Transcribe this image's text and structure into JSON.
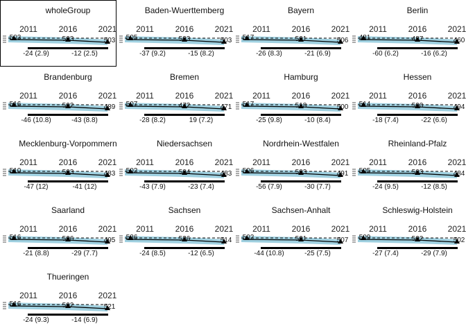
{
  "chart_data": {
    "type": "line",
    "x_ticks": [
      "2011",
      "2016",
      "2021"
    ],
    "colors": {
      "band": "#9fd0e0",
      "main_line": "#000000",
      "ref_line": "#000000",
      "grey_text": "#aaaaaa"
    },
    "highlighted_panel": "wholeGroup",
    "panels": [
      {
        "name": "wholeGroup",
        "point_labels": [
          "503",
          "503",
          "503"
        ],
        "diff_labels": [
          "-24 (2.9)",
          "-12 (2.5)"
        ]
      },
      {
        "name": "Baden-Wuerttemberg",
        "point_labels": [
          "505",
          "503",
          "503"
        ],
        "diff_labels": [
          "-37 (9.2)",
          "-15 (8.2)"
        ]
      },
      {
        "name": "Bayern",
        "point_labels": [
          "517",
          "501",
          "506"
        ],
        "diff_labels": [
          "-26 (8.3)",
          "-21 (6.9)"
        ]
      },
      {
        "name": "Berlin",
        "point_labels": [
          "481",
          "487",
          "460"
        ],
        "diff_labels": [
          "-60 (6.2)",
          "-16 (6.2)"
        ]
      },
      {
        "name": "Brandenburg",
        "point_labels": [
          "516",
          "502",
          "489"
        ],
        "diff_labels": [
          "-46 (10.8)",
          "-43 (8.8)"
        ]
      },
      {
        "name": "Bremen",
        "point_labels": [
          "507",
          "472",
          "471"
        ],
        "diff_labels": [
          "-28 (8.2)",
          "19 (7.2)"
        ]
      },
      {
        "name": "Hamburg",
        "point_labels": [
          "517",
          "518",
          "500"
        ],
        "diff_labels": [
          "-25 (9.8)",
          "-10 (8.4)"
        ]
      },
      {
        "name": "Hessen",
        "point_labels": [
          "514",
          "500",
          "494"
        ],
        "diff_labels": [
          "-18 (7.4)",
          "-22 (6.6)"
        ]
      },
      {
        "name": "Mecklenburg-Vorpommern",
        "point_labels": [
          "510",
          "503",
          "483"
        ],
        "diff_labels": [
          "-47 (12)",
          "-41 (12)"
        ]
      },
      {
        "name": "Niedersachsen",
        "point_labels": [
          "502",
          "504",
          "483"
        ],
        "diff_labels": [
          "-43 (7.9)",
          "-23 (7.4)"
        ]
      },
      {
        "name": "Nordrhein-Westfalen",
        "point_labels": [
          "506",
          "503",
          "491"
        ],
        "diff_labels": [
          "-56 (7.9)",
          "-30 (7.7)"
        ]
      },
      {
        "name": "Rheinland-Pfalz",
        "point_labels": [
          "505",
          "503",
          "484"
        ],
        "diff_labels": [
          "-24 (9.5)",
          "-12 (8.5)"
        ]
      },
      {
        "name": "Saarland",
        "point_labels": [
          "516",
          "506",
          "495"
        ],
        "diff_labels": [
          "-21 (8.8)",
          "-29 (7.7)"
        ]
      },
      {
        "name": "Sachsen",
        "point_labels": [
          "536",
          "536",
          "514"
        ],
        "diff_labels": [
          "-24 (8.5)",
          "-12 (6.5)"
        ]
      },
      {
        "name": "Sachsen-Anhalt",
        "point_labels": [
          "502",
          "501",
          "507"
        ],
        "diff_labels": [
          "-44 (10.8)",
          "-25 (7.5)"
        ]
      },
      {
        "name": "Schleswig-Holstein",
        "point_labels": [
          "509",
          "502",
          "502"
        ],
        "diff_labels": [
          "-27 (7.4)",
          "-29 (7.9)"
        ]
      },
      {
        "name": "Thueringen",
        "point_labels": [
          "516",
          "502",
          "521"
        ],
        "diff_labels": [
          "-24 (9.3)",
          "-14 (6.9)"
        ]
      }
    ]
  }
}
